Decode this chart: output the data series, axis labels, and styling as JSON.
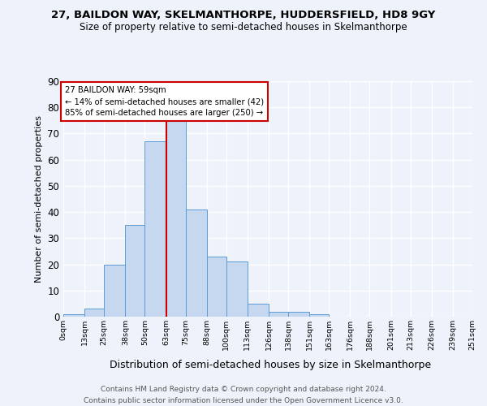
{
  "title": "27, BAILDON WAY, SKELMANTHORPE, HUDDERSFIELD, HD8 9GY",
  "subtitle": "Size of property relative to semi-detached houses in Skelmanthorpe",
  "xlabel": "Distribution of semi-detached houses by size in Skelmanthorpe",
  "ylabel": "Number of semi-detached properties",
  "footer1": "Contains HM Land Registry data © Crown copyright and database right 2024.",
  "footer2": "Contains public sector information licensed under the Open Government Licence v3.0.",
  "annotation_title": "27 BAILDON WAY: 59sqm",
  "annotation_line2": "← 14% of semi-detached houses are smaller (42)",
  "annotation_line3": "85% of semi-detached houses are larger (250) →",
  "property_size_sqm": 59,
  "bin_edges": [
    0,
    13,
    25,
    38,
    50,
    63,
    75,
    88,
    100,
    113,
    126,
    138,
    151,
    163,
    176,
    188,
    201,
    213,
    226,
    239,
    251
  ],
  "bar_heights": [
    1,
    3,
    20,
    35,
    67,
    75,
    41,
    23,
    21,
    5,
    2,
    2,
    1,
    0,
    0,
    0,
    0,
    0,
    0,
    0
  ],
  "bar_color": "#c5d8f0",
  "bar_edge_color": "#5b9bd5",
  "vline_color": "#cc0000",
  "vline_x": 63,
  "annotation_box_color": "#cc0000",
  "annotation_bg": "#ffffff",
  "background_color": "#eef2fb",
  "grid_color": "#ffffff",
  "ylim": [
    0,
    90
  ],
  "yticks": [
    0,
    10,
    20,
    30,
    40,
    50,
    60,
    70,
    80,
    90
  ],
  "title_fontsize": 9.5,
  "subtitle_fontsize": 8.5,
  "ylabel_fontsize": 8,
  "xlabel_fontsize": 9,
  "ytick_fontsize": 8.5,
  "xtick_fontsize": 6.8
}
